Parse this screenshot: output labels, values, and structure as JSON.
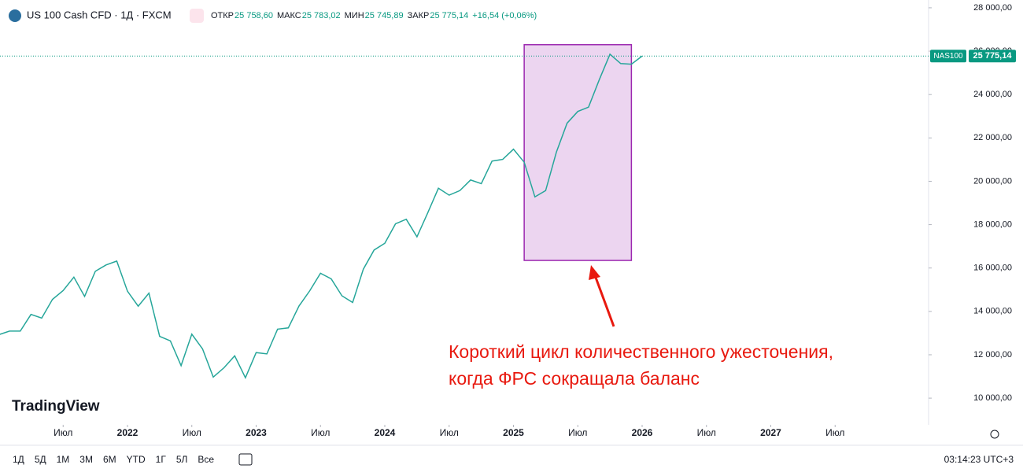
{
  "chart_data": {
    "type": "line",
    "header": {
      "symbol": "US 100 Cash CFD · 1Д · FXCM",
      "fields": [
        [
          "ОТКР",
          "25 758,60"
        ],
        [
          "МАКС",
          "25 783,02"
        ],
        [
          "МИН",
          "25 745,89"
        ],
        [
          "ЗАКР",
          "25 775,14"
        ]
      ],
      "change": "+16,54 (+0,06%)"
    },
    "x": [
      "2021-01",
      "2021-02",
      "2021-03",
      "2021-04",
      "2021-05",
      "2021-06",
      "2021-07",
      "2021-08",
      "2021-09",
      "2021-10",
      "2021-11",
      "2021-12",
      "2022-01",
      "2022-02",
      "2022-03",
      "2022-04",
      "2022-05",
      "2022-06",
      "2022-07",
      "2022-08",
      "2022-09",
      "2022-10",
      "2022-11",
      "2022-12",
      "2023-01",
      "2023-02",
      "2023-03",
      "2023-04",
      "2023-05",
      "2023-06",
      "2023-07",
      "2023-08",
      "2023-09",
      "2023-10",
      "2023-11",
      "2023-12",
      "2024-01",
      "2024-02",
      "2024-03",
      "2024-04",
      "2024-05",
      "2024-06",
      "2024-07",
      "2024-08",
      "2024-09",
      "2024-10",
      "2024-11",
      "2024-12",
      "2025-01",
      "2025-02",
      "2025-03",
      "2025-04",
      "2025-05",
      "2025-06",
      "2025-07",
      "2025-08",
      "2025-09",
      "2025-10",
      "2025-11",
      "2025-12",
      "2026-01"
    ],
    "series": [
      {
        "name": "NAS100",
        "color": "#26a69a",
        "values": [
          12925,
          13090,
          13090,
          13860,
          13690,
          14550,
          14960,
          15580,
          14690,
          15850,
          16140,
          16320,
          14930,
          14240,
          14840,
          12850,
          12640,
          11500,
          12950,
          12270,
          10970,
          11400,
          11950,
          10940,
          12100,
          12040,
          13180,
          13240,
          14250,
          14950,
          15760,
          15500,
          14720,
          14410,
          15950,
          16830,
          17140,
          18040,
          18250,
          17440,
          18540,
          19680,
          19360,
          19570,
          20060,
          19890,
          20930,
          21010,
          21480,
          20880,
          19280,
          19570,
          21340,
          22680,
          23220,
          23420,
          24680,
          25860,
          25430,
          25400,
          25775.14
        ]
      }
    ],
    "ylim": [
      8770,
      28360
    ],
    "yticks": [
      {
        "value": 10000,
        "label": "10 000,00"
      },
      {
        "value": 12000,
        "label": "12 000,00"
      },
      {
        "value": 14000,
        "label": "14 000,00"
      },
      {
        "value": 16000,
        "label": "16 000,00"
      },
      {
        "value": 18000,
        "label": "18 000,00"
      },
      {
        "value": 20000,
        "label": "20 000,00"
      },
      {
        "value": 22000,
        "label": "22 000,00"
      },
      {
        "value": 24000,
        "label": "24 000,00"
      },
      {
        "value": 26000,
        "label": "26 000,00"
      },
      {
        "value": 28000,
        "label": "28 000,00"
      }
    ],
    "xticks": [
      {
        "value": "2021-07",
        "label": "Июл"
      },
      {
        "value": "2022-01",
        "label": "2022"
      },
      {
        "value": "2022-07",
        "label": "Июл"
      },
      {
        "value": "2023-01",
        "label": "2023"
      },
      {
        "value": "2023-07",
        "label": "Июл"
      },
      {
        "value": "2024-01",
        "label": "2024"
      },
      {
        "value": "2024-07",
        "label": "Июл"
      },
      {
        "value": "2025-01",
        "label": "2025"
      },
      {
        "value": "2025-07",
        "label": "Июл"
      },
      {
        "value": "2026-01",
        "label": "2026"
      },
      {
        "value": "2026-07",
        "label": "Июл"
      },
      {
        "value": "2027-01",
        "label": "2027"
      },
      {
        "value": "2027-07",
        "label": "Июл"
      }
    ],
    "price_tag": {
      "symbol": "NAS100",
      "value": 25775.14,
      "label": "25 775,14"
    },
    "highlight": {
      "x0": "2025-02",
      "x1": "2025-12",
      "y0": 16350,
      "y1": 26300
    },
    "annotation": [
      "Короткий цикл количественного ужесточения,",
      "когда ФРС сокращала баланс"
    ],
    "logo": "TradingView",
    "ranges": [
      "1Д",
      "5Д",
      "1М",
      "3М",
      "6М",
      "YTD",
      "1Г",
      "5Л",
      "Все"
    ],
    "clock": "03:14:23 UTC+3"
  }
}
